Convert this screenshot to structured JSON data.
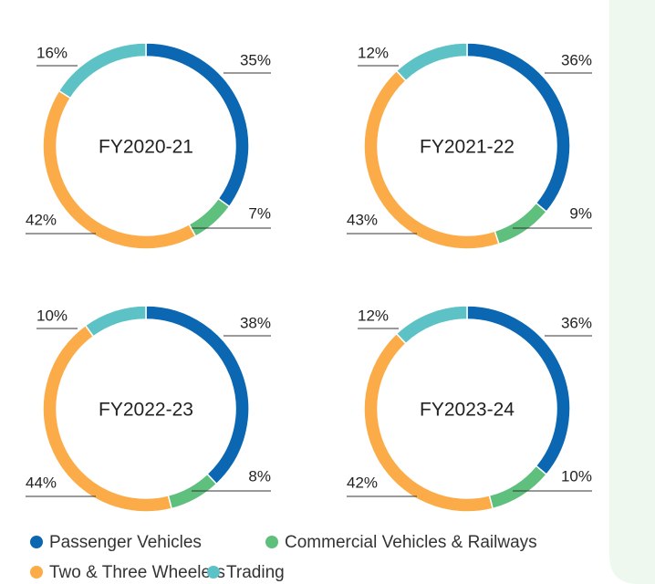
{
  "legend": {
    "categories": [
      "Passenger Vehicles",
      "Commercial Vehicles & Railways",
      "Two & Three Wheelers",
      "Trading"
    ],
    "colors": [
      "#0b67b2",
      "#5fbf7c",
      "#fbac48",
      "#5cc2c6"
    ]
  },
  "chart_data": [
    {
      "type": "donut",
      "title": "FY2020-21",
      "values": [
        35,
        7,
        42,
        16
      ],
      "value_labels": [
        "35%",
        "7%",
        "42%",
        "16%"
      ]
    },
    {
      "type": "donut",
      "title": "FY2021-22",
      "values": [
        36,
        9,
        43,
        12
      ],
      "value_labels": [
        "36%",
        "9%",
        "43%",
        "12%"
      ]
    },
    {
      "type": "donut",
      "title": "FY2022-23",
      "values": [
        38,
        8,
        44,
        10
      ],
      "value_labels": [
        "38%",
        "8%",
        "44%",
        "10%"
      ]
    },
    {
      "type": "donut",
      "title": "FY2023-24",
      "values": [
        36,
        10,
        42,
        12
      ],
      "value_labels": [
        "36%",
        "10%",
        "42%",
        "12%"
      ]
    }
  ]
}
